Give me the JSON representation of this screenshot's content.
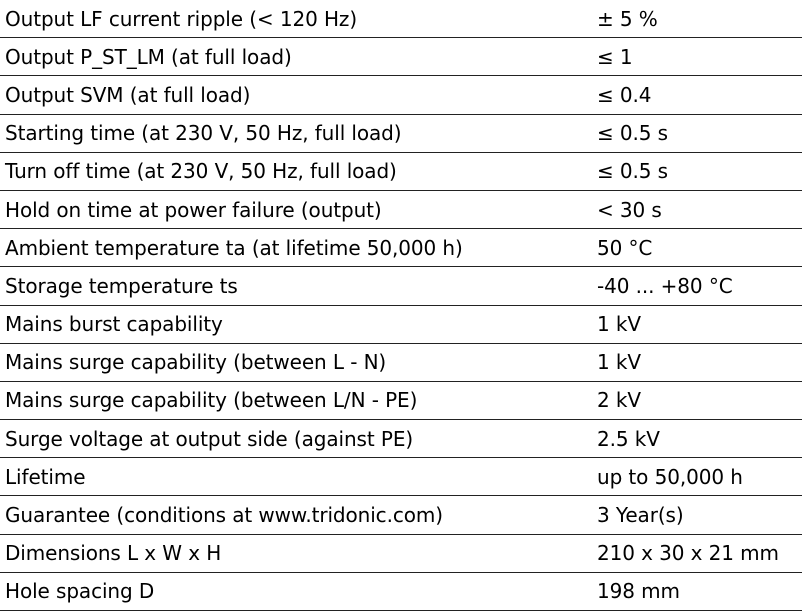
{
  "rows": [
    {
      "label": "Output LF current ripple (< 120 Hz)",
      "value": "± 5 %"
    },
    {
      "label": "Output P_ST_LM (at full load)",
      "value": "≤ 1"
    },
    {
      "label": "Output SVM (at full load)",
      "value": "≤ 0.4"
    },
    {
      "label": "Starting time (at 230 V, 50 Hz, full load)",
      "value": "≤ 0.5 s"
    },
    {
      "label": "Turn off time (at 230 V, 50 Hz, full load)",
      "value": "≤ 0.5 s"
    },
    {
      "label": "Hold on time at power failure (output)",
      "value": "< 30 s"
    },
    {
      "label": "Ambient temperature ta (at lifetime 50,000 h)",
      "value": "50 °C"
    },
    {
      "label": "Storage temperature ts",
      "value": "-40 ... +80 °C"
    },
    {
      "label": "Mains burst capability",
      "value": "1 kV"
    },
    {
      "label": "Mains surge capability (between L - N)",
      "value": "1 kV"
    },
    {
      "label": "Mains surge capability (between L/N - PE)",
      "value": "2 kV"
    },
    {
      "label": "Surge voltage at output side (against PE)",
      "value": "2.5 kV"
    },
    {
      "label": "Lifetime",
      "value": "up to 50,000 h"
    },
    {
      "label": "Guarantee (conditions at www.tridonic.com)",
      "value": "3 Year(s)"
    },
    {
      "label": "Dimensions L x W x H",
      "value": "210 x 30 x 21 mm"
    },
    {
      "label": "Hole spacing D",
      "value": "198 mm"
    }
  ]
}
